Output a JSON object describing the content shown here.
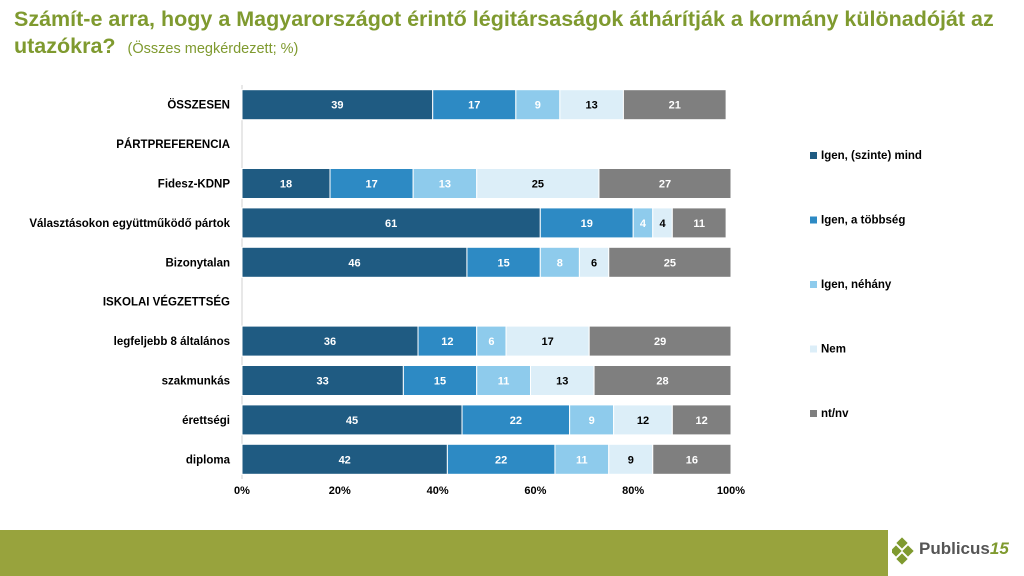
{
  "title": "Számít-e arra, hogy a Magyarországot érintő légitársaságok áthárítják a kormány különadóját az utazókra?",
  "subtitle": "(Összes megkérdezett; %)",
  "logo": {
    "name": "Publicus",
    "number": "15"
  },
  "chart_data": {
    "type": "stacked-bar-horizontal-100",
    "title": "Számít-e arra, hogy a Magyarországot érintő légitársaságok áthárítják a kormány különadóját az utazókra?",
    "xlim": [
      0,
      100
    ],
    "x_ticks": [
      "0%",
      "20%",
      "40%",
      "60%",
      "80%",
      "100%"
    ],
    "legend_position": "right",
    "series": [
      {
        "name": "Igen, (szinte) mind",
        "color": "#1f5b82",
        "label_color": "#ffffff"
      },
      {
        "name": "Igen, a többség",
        "color": "#2d8ac4",
        "label_color": "#ffffff"
      },
      {
        "name": "Igen, néhány",
        "color": "#8ecbec",
        "label_color": "#ffffff"
      },
      {
        "name": "Nem",
        "color": "#dceef8",
        "label_color": "#000000"
      },
      {
        "name": "nt/nv",
        "color": "#7f7f7f",
        "label_color": "#ffffff"
      }
    ],
    "rows": [
      {
        "label": "ÖSSZESEN",
        "values": [
          39,
          17,
          9,
          13,
          21
        ]
      },
      {
        "label": "PÁRTPREFERENCIA",
        "header": true
      },
      {
        "label": "Fidesz-KDNP",
        "values": [
          18,
          17,
          13,
          25,
          27
        ]
      },
      {
        "label": "Választásokon együttműködő pártok",
        "values": [
          61,
          19,
          4,
          4,
          11
        ]
      },
      {
        "label": "Bizonytalan",
        "values": [
          46,
          15,
          8,
          6,
          25
        ]
      },
      {
        "label": "ISKOLAI VÉGZETTSÉG",
        "header": true
      },
      {
        "label": "legfeljebb 8 általános",
        "values": [
          36,
          12,
          6,
          17,
          29
        ]
      },
      {
        "label": "szakmunkás",
        "values": [
          33,
          15,
          11,
          13,
          28
        ]
      },
      {
        "label": "érettségi",
        "values": [
          45,
          22,
          9,
          12,
          12
        ]
      },
      {
        "label": "diploma",
        "values": [
          42,
          22,
          11,
          9,
          16
        ]
      }
    ]
  }
}
